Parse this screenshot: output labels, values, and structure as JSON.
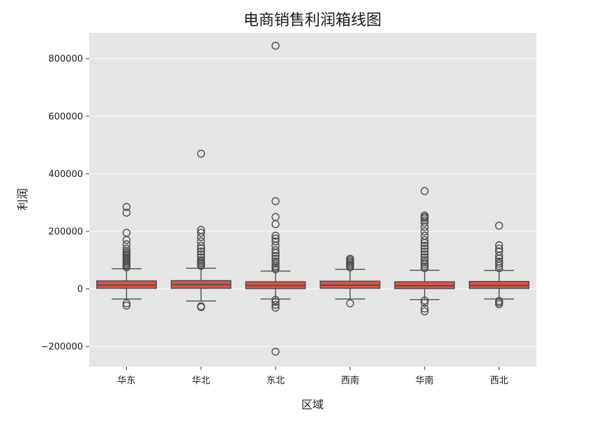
{
  "chart_data": {
    "type": "box",
    "title": "电商销售利润箱线图",
    "xlabel": "区域",
    "ylabel": "利润",
    "categories": [
      "华东",
      "华北",
      "东北",
      "西南",
      "华南",
      "西北"
    ],
    "ylim": [
      -270000,
      890000
    ],
    "yticks": [
      -200000,
      0,
      200000,
      400000,
      600000,
      800000
    ],
    "ytick_labels": [
      "−200000",
      "0",
      "200000",
      "400000",
      "600000",
      "800000"
    ],
    "grid": true,
    "colors": {
      "background": "#e5e5e5",
      "grid": "#ffffff",
      "box_fill": "#d9544a",
      "box_edge": "#4d4d4d"
    },
    "boxes": [
      {
        "category": "华东",
        "whisker_low": -35000,
        "q1": 2000,
        "median": 13000,
        "q3": 28000,
        "whisker_high": 70000,
        "outliers": [
          285000,
          265000,
          195000,
          170000,
          155000,
          140000,
          130000,
          125000,
          120000,
          115000,
          110000,
          105000,
          100000,
          95000,
          90000,
          85000,
          80000,
          75000,
          -50000,
          -58000
        ]
      },
      {
        "category": "华北",
        "whisker_low": -42000,
        "q1": 2000,
        "median": 15000,
        "q3": 29000,
        "whisker_high": 72000,
        "outliers": [
          470000,
          205000,
          195000,
          180000,
          165000,
          150000,
          140000,
          130000,
          120000,
          110000,
          100000,
          95000,
          90000,
          85000,
          80000,
          -60000,
          -63000
        ]
      },
      {
        "category": "东北",
        "whisker_low": -35000,
        "q1": 1000,
        "median": 12000,
        "q3": 25000,
        "whisker_high": 62000,
        "outliers": [
          845000,
          305000,
          250000,
          225000,
          185000,
          175000,
          165000,
          150000,
          135000,
          125000,
          115000,
          105000,
          95000,
          88000,
          80000,
          75000,
          68000,
          -38000,
          -45000,
          -55000,
          -65000,
          -218000
        ]
      },
      {
        "category": "西南",
        "whisker_low": -35000,
        "q1": 2000,
        "median": 13000,
        "q3": 27000,
        "whisker_high": 68000,
        "outliers": [
          105000,
          100000,
          95000,
          90000,
          85000,
          80000,
          75000,
          -50000
        ]
      },
      {
        "category": "华南",
        "whisker_low": -37000,
        "q1": 1000,
        "median": 11000,
        "q3": 25000,
        "whisker_high": 65000,
        "outliers": [
          340000,
          255000,
          250000,
          245000,
          238000,
          230000,
          215000,
          200000,
          185000,
          170000,
          160000,
          150000,
          140000,
          130000,
          120000,
          110000,
          100000,
          92000,
          85000,
          78000,
          72000,
          -40000,
          -48000,
          -68000,
          -78000
        ]
      },
      {
        "category": "西北",
        "whisker_low": -35000,
        "q1": 1500,
        "median": 12000,
        "q3": 26000,
        "whisker_high": 64000,
        "outliers": [
          220000,
          152000,
          140000,
          130000,
          115000,
          105000,
          95000,
          88000,
          80000,
          72000,
          -42000,
          -47000,
          -53000
        ]
      }
    ]
  }
}
